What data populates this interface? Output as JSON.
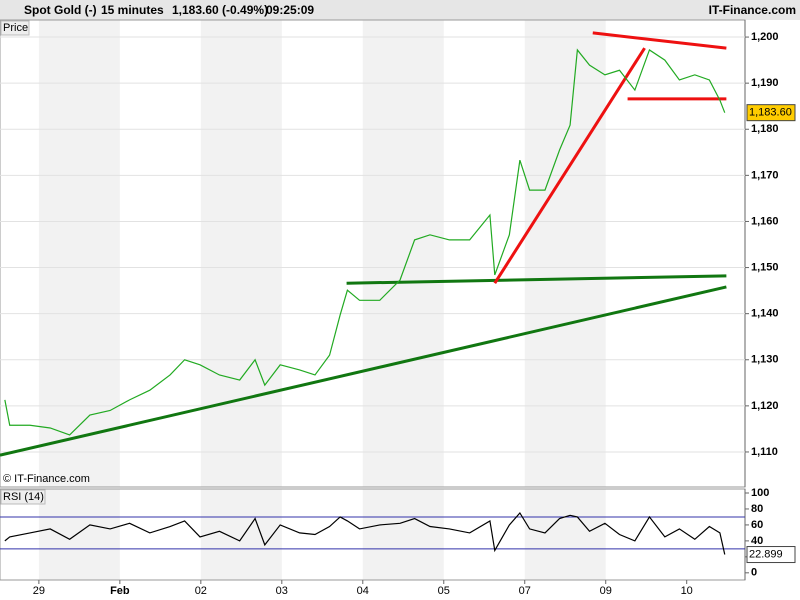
{
  "header": {
    "symbol": "Spot Gold (-)",
    "interval": "15 minutes",
    "quote": "1,183.60 (-0.49%)",
    "time": "09:25:09",
    "brand": "IT-Finance.com"
  },
  "chart_data": [
    {
      "type": "line",
      "title": "Price",
      "annotation": "© IT-Finance.com",
      "grid": true,
      "series": [
        {
          "color": "#22aa22",
          "x": [
            -0.42,
            -0.36,
            -0.11,
            0.14,
            0.38,
            0.63,
            0.88,
            1.12,
            1.37,
            1.62,
            1.8,
            1.99,
            2.23,
            2.48,
            2.67,
            2.79,
            2.98,
            3.22,
            3.41,
            3.59,
            3.72,
            3.81,
            3.96,
            4.21,
            4.46,
            4.64,
            4.83,
            5.07,
            5.32,
            5.57,
            5.63,
            5.81,
            5.94,
            6.06,
            6.25,
            6.43,
            6.56,
            6.65,
            6.8,
            6.99,
            7.17,
            7.36,
            7.54,
            7.73,
            7.91,
            8.1,
            8.28,
            8.41,
            8.47
          ],
          "values": [
            1121.3,
            1115.8,
            1115.8,
            1115.2,
            1113.7,
            1118,
            1119,
            1121.3,
            1123.4,
            1126.7,
            1130,
            1128.9,
            1126.7,
            1125.6,
            1130,
            1124.5,
            1128.9,
            1127.8,
            1126.7,
            1131,
            1139.7,
            1145.1,
            1142.9,
            1142.9,
            1147.3,
            1156,
            1157.1,
            1156,
            1156,
            1161.4,
            1148.4,
            1157.1,
            1173.3,
            1166.8,
            1166.8,
            1175.5,
            1180.9,
            1197.2,
            1193.9,
            1191.8,
            1192.8,
            1188.5,
            1197.2,
            1195,
            1190.7,
            1191.8,
            1190.7,
            1186.3,
            1183.6
          ],
          "last_label": "1,183.60"
        }
      ],
      "lines": [
        {
          "color": "#117711",
          "x": [
            -0.48,
            8.49
          ],
          "values": [
            1109.3,
            1145.8
          ]
        },
        {
          "color": "#117711",
          "x": [
            3.8,
            8.49
          ],
          "values": [
            1146.6,
            1148.2
          ]
        },
        {
          "color": "#ee1111",
          "x": [
            5.63,
            7.48
          ],
          "values": [
            1146.6,
            1197.6
          ]
        },
        {
          "color": "#ee1111",
          "x": [
            6.84,
            8.49
          ],
          "values": [
            1200.9,
            1197.6
          ]
        },
        {
          "color": "#ee1111",
          "x": [
            7.27,
            8.49
          ],
          "values": [
            1186.6,
            1186.6
          ]
        }
      ],
      "xlim": [
        -0.48,
        8.72
      ],
      "ylim": [
        1102.4,
        1203.7
      ],
      "yticks": [
        {
          "value": 1110,
          "label": "1,110"
        },
        {
          "value": 1120,
          "label": "1,120"
        },
        {
          "value": 1130,
          "label": "1,130"
        },
        {
          "value": 1140,
          "label": "1,140"
        },
        {
          "value": 1150,
          "label": "1,150"
        },
        {
          "value": 1160,
          "label": "1,160"
        },
        {
          "value": 1170,
          "label": "1,170"
        },
        {
          "value": 1180,
          "label": "1,180"
        },
        {
          "value": 1190,
          "label": "1,190"
        },
        {
          "value": 1200,
          "label": "1,200"
        }
      ]
    },
    {
      "type": "line",
      "title": "RSI (14)",
      "grid": false,
      "series": [
        {
          "color": "#000000",
          "x": [
            -0.42,
            -0.36,
            -0.11,
            0.14,
            0.38,
            0.63,
            0.88,
            1.12,
            1.37,
            1.62,
            1.8,
            1.99,
            2.23,
            2.48,
            2.67,
            2.79,
            2.98,
            3.22,
            3.41,
            3.59,
            3.72,
            3.81,
            3.96,
            4.21,
            4.46,
            4.64,
            4.83,
            5.07,
            5.32,
            5.57,
            5.63,
            5.81,
            5.94,
            6.06,
            6.25,
            6.43,
            6.56,
            6.65,
            6.8,
            6.99,
            7.17,
            7.36,
            7.54,
            7.73,
            7.91,
            8.1,
            8.28,
            8.41,
            8.47
          ],
          "values": [
            40,
            45,
            50,
            55,
            42,
            60,
            55,
            62,
            50,
            58,
            65,
            45,
            52,
            40,
            68,
            35,
            60,
            50,
            48,
            58,
            70,
            65,
            55,
            60,
            62,
            68,
            58,
            55,
            50,
            65,
            28,
            60,
            75,
            55,
            50,
            68,
            72,
            70,
            52,
            62,
            48,
            40,
            70,
            45,
            55,
            42,
            58,
            50,
            22.899
          ],
          "last_label": "22.899"
        }
      ],
      "levels": [
        30,
        70
      ],
      "level_color": "#3333aa",
      "xlim": [
        -0.48,
        8.72
      ],
      "ylim": [
        -9,
        105
      ],
      "yticks": [
        0,
        20,
        40,
        60,
        80,
        100
      ],
      "xticks": [
        {
          "value": 0,
          "label": "29"
        },
        {
          "value": 1,
          "label": "Feb"
        },
        {
          "value": 2,
          "label": "02"
        },
        {
          "value": 3,
          "label": "03"
        },
        {
          "value": 4,
          "label": "04"
        },
        {
          "value": 5,
          "label": "05"
        },
        {
          "value": 6,
          "label": "07"
        },
        {
          "value": 7,
          "label": "09"
        },
        {
          "value": 8,
          "label": "10"
        }
      ]
    }
  ]
}
